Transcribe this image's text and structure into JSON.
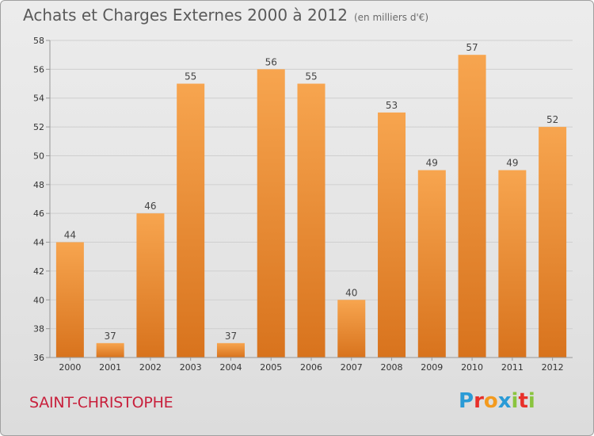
{
  "header": {
    "title": "Achats et Charges Externes 2000 à 2012",
    "subtitle": "(en milliers d'€)"
  },
  "footer": {
    "commune": "SAINT-CHRISTOPHE",
    "logo_text": "Proxiti",
    "logo_letters": [
      {
        "ch": "P",
        "color": "#2a9bd6"
      },
      {
        "ch": "r",
        "color": "#e8302a"
      },
      {
        "ch": "o",
        "color": "#f39a1e"
      },
      {
        "ch": "x",
        "color": "#2a9bd6"
      },
      {
        "ch": "i",
        "color": "#8ac43f"
      },
      {
        "ch": "t",
        "color": "#e8302a"
      },
      {
        "ch": "i",
        "color": "#8ac43f"
      }
    ]
  },
  "colors": {
    "bar_top": "#f7a54f",
    "bar_bottom": "#d8731d",
    "grid": "#cfcfcf",
    "axis": "#999999"
  },
  "chart_data": {
    "type": "bar",
    "title": "Achats et Charges Externes 2000 à 2012",
    "subtitle": "(en milliers d'€)",
    "xlabel": "",
    "ylabel": "",
    "categories": [
      "2000",
      "2001",
      "2002",
      "2003",
      "2004",
      "2005",
      "2006",
      "2007",
      "2008",
      "2009",
      "2010",
      "2011",
      "2012"
    ],
    "values": [
      44,
      37,
      46,
      55,
      37,
      56,
      55,
      40,
      53,
      49,
      57,
      49,
      52
    ],
    "data_labels": [
      "44",
      "37",
      "46",
      "55",
      "37",
      "56",
      "55",
      "40",
      "53",
      "49",
      "57",
      "49",
      "52"
    ],
    "ylim": [
      36,
      58
    ],
    "yticks": [
      36,
      38,
      40,
      42,
      44,
      46,
      48,
      50,
      52,
      54,
      56,
      58
    ],
    "ytick_labels": [
      "36",
      "38",
      "40",
      "42",
      "44",
      "46",
      "48",
      "50",
      "52",
      "54",
      "56",
      "58"
    ],
    "grid": true,
    "legend": "none"
  }
}
